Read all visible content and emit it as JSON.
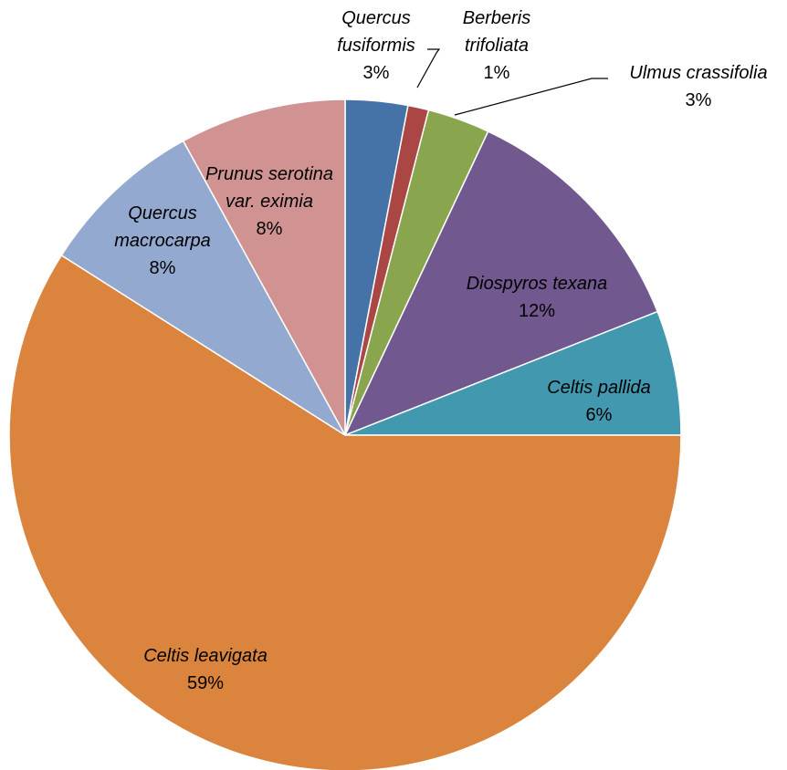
{
  "chart_data": {
    "type": "pie",
    "title": "",
    "slices": [
      {
        "label_lines": [
          "Quercus",
          "fusiformis"
        ],
        "label": "Quercus fusiformis",
        "percent_label": "3%",
        "value": 3,
        "color": "#4572A7"
      },
      {
        "label_lines": [
          "Berberis",
          "trifoliata"
        ],
        "label": "Berberis trifoliata",
        "percent_label": "1%",
        "value": 1,
        "color": "#AA4643"
      },
      {
        "label_lines": [
          "Ulmus crassifolia"
        ],
        "label": "Ulmus crassifolia",
        "percent_label": "3%",
        "value": 3,
        "color": "#89A54E"
      },
      {
        "label_lines": [
          "Diospyros texana"
        ],
        "label": "Diospyros texana",
        "percent_label": "12%",
        "value": 12,
        "color": "#71588F"
      },
      {
        "label_lines": [
          "Celtis pallida"
        ],
        "label": "Celtis pallida",
        "percent_label": "6%",
        "value": 6,
        "color": "#4198AF"
      },
      {
        "label_lines": [
          "Celtis leavigata"
        ],
        "label": "Celtis leavigata",
        "percent_label": "59%",
        "value": 59,
        "color": "#DB843D"
      },
      {
        "label_lines": [
          "Quercus",
          "macrocarpa"
        ],
        "label": "Quercus macrocarpa",
        "percent_label": "8%",
        "value": 8,
        "color": "#93A9CF"
      },
      {
        "label_lines": [
          "Prunus serotina",
          "var. eximia"
        ],
        "label": "Prunus serotina var. eximia",
        "percent_label": "8%",
        "value": 8,
        "color": "#D19392"
      }
    ],
    "start_angle_deg": 0,
    "direction": "clockwise",
    "legend": "none",
    "data_labels": "category name and percentage"
  }
}
